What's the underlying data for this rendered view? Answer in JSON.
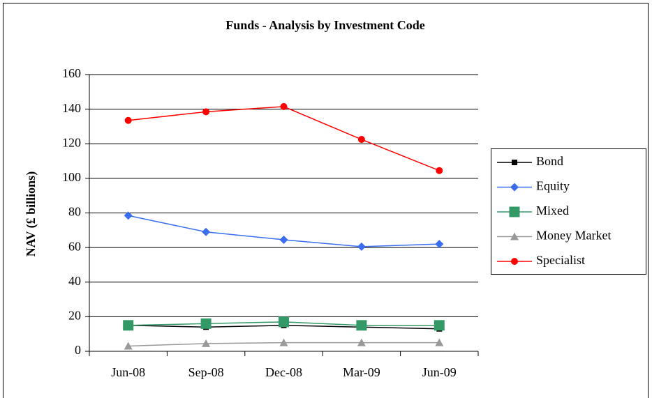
{
  "chart_data": {
    "type": "line",
    "title": "Funds - Analysis by Investment Code",
    "y_label": "NAV (£ billions)",
    "categories": [
      "Jun-08",
      "Sep-08",
      "Dec-08",
      "Mar-09",
      "Jun-09"
    ],
    "series": [
      {
        "name": "Bond",
        "color": "#000000",
        "marker": "square",
        "values": [
          15,
          14,
          15,
          14,
          13
        ]
      },
      {
        "name": "Equity",
        "color": "#3a6df0",
        "marker": "diamond",
        "values": [
          78.5,
          69,
          64.5,
          60.5,
          62
        ]
      },
      {
        "name": "Mixed",
        "color": "#339966",
        "marker": "big-square",
        "values": [
          15,
          16,
          17,
          15,
          15
        ]
      },
      {
        "name": "Money Market",
        "color": "#999999",
        "marker": "triangle",
        "values": [
          3,
          4.5,
          5,
          5,
          5
        ]
      },
      {
        "name": "Specialist",
        "color": "#ff0000",
        "marker": "circle",
        "values": [
          133.5,
          138.5,
          141.5,
          122.5,
          104.5
        ]
      }
    ],
    "ylim": [
      0,
      160
    ],
    "yticks": [
      0,
      20,
      40,
      60,
      80,
      100,
      120,
      140,
      160
    ],
    "grid": true,
    "legend": "right"
  }
}
